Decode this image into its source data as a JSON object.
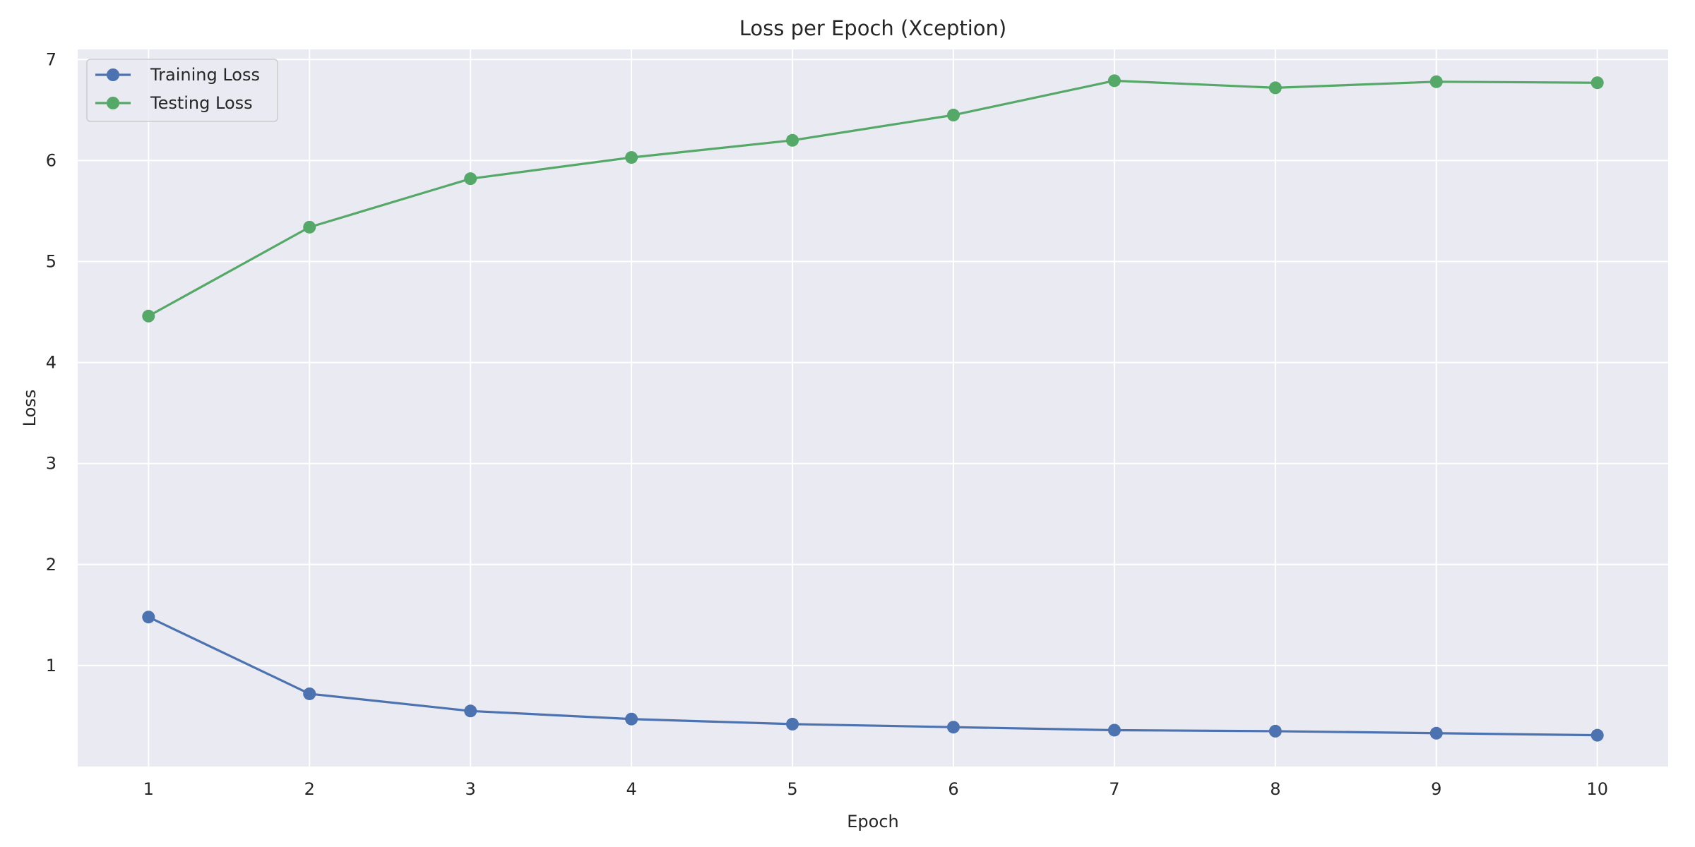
{
  "chart_data": {
    "type": "line",
    "title": "Loss per Epoch (Xception)",
    "xlabel": "Epoch",
    "ylabel": "Loss",
    "categories": [
      1,
      2,
      3,
      4,
      5,
      6,
      7,
      8,
      9,
      10
    ],
    "x_ticks": [
      "1",
      "2",
      "3",
      "4",
      "5",
      "6",
      "7",
      "8",
      "9",
      "10"
    ],
    "y_ticks": [
      "1",
      "2",
      "3",
      "4",
      "5",
      "6",
      "7"
    ],
    "ylim": [
      0.0,
      7.1
    ],
    "xlim": [
      0.56,
      10.44
    ],
    "grid": true,
    "legend_position": "top-left",
    "series": [
      {
        "name": "Training Loss",
        "color": "#4c72b0",
        "values": [
          1.48,
          0.72,
          0.55,
          0.47,
          0.42,
          0.39,
          0.36,
          0.35,
          0.33,
          0.31
        ],
        "marker": "circle"
      },
      {
        "name": "Testing Loss",
        "color": "#55a868",
        "values": [
          4.46,
          5.34,
          5.82,
          6.03,
          6.2,
          6.45,
          6.79,
          6.72,
          6.78,
          6.77
        ],
        "marker": "circle"
      }
    ],
    "background_color": "#eaeaf2",
    "grid_color": "#ffffff"
  }
}
